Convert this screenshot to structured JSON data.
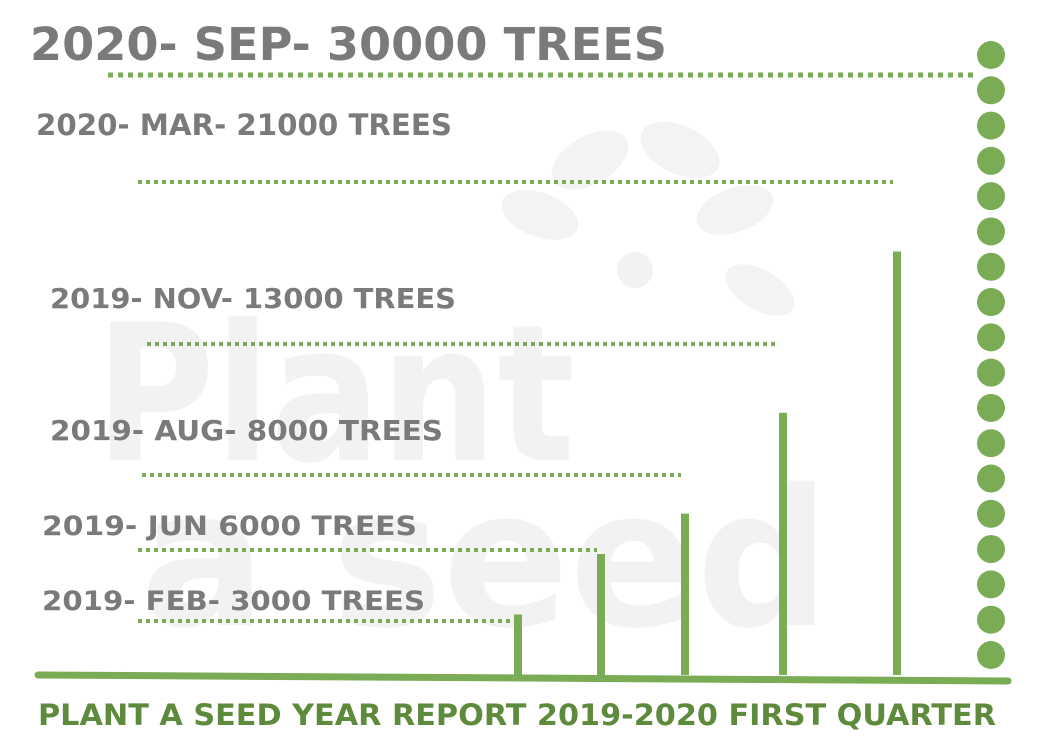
{
  "chart_data": {
    "type": "bar",
    "title": "2020- SEP- 30000 TREES",
    "footer": "PLANT A SEED YEAR REPORT 2019-2020 FIRST QUARTER",
    "watermark": {
      "line1": "Plant",
      "line2": "a seed"
    },
    "points": [
      {
        "label": "2019- FEB- 3000 TREES",
        "value": 3000
      },
      {
        "label": "2019- JUN 6000 TREES",
        "value": 6000
      },
      {
        "label": "2019- AUG- 8000 TREES",
        "value": 8000
      },
      {
        "label": "2019- NOV- 13000 TREES",
        "value": 13000
      },
      {
        "label": "2020- MAR- 21000 TREES",
        "value": 21000
      },
      {
        "label": "2020- SEP- 30000 TREES",
        "value": 30000
      }
    ],
    "colors": {
      "bar": "#7aab55",
      "label": "#7a7a7a",
      "footer": "#5e8a3c",
      "watermark": "#f2f2f2"
    }
  }
}
